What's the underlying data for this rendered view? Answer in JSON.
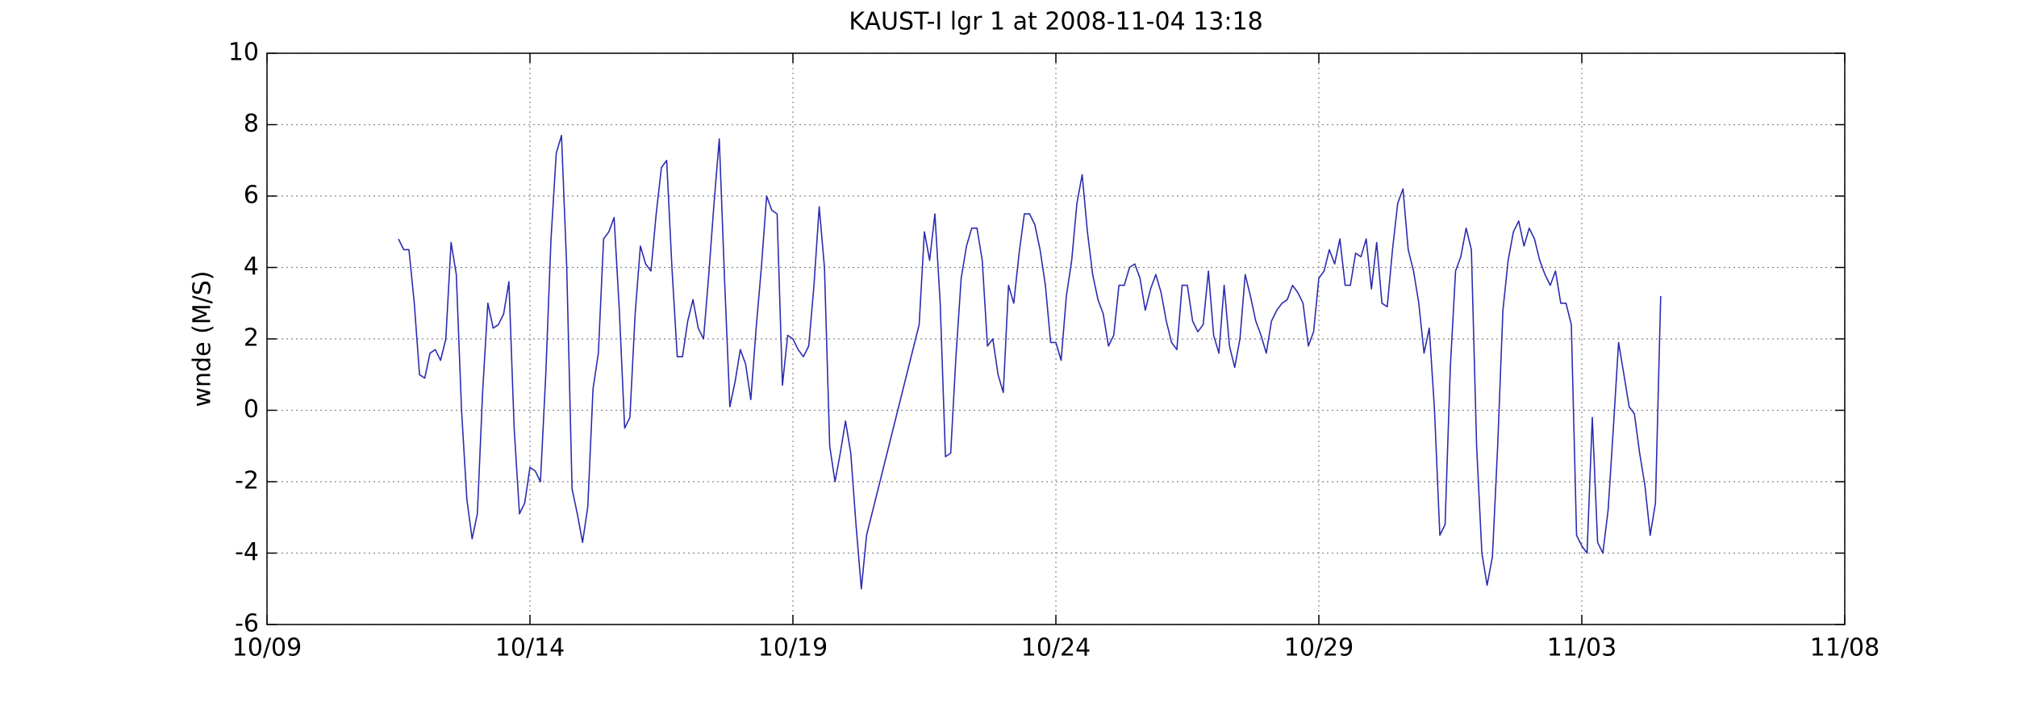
{
  "chart_data": {
    "type": "line",
    "title": "KAUST-I lgr 1 at 2008-11-04 13:18",
    "y_label": "wnde (M/S)",
    "x": [
      2.5,
      2.6,
      2.7,
      2.8,
      2.9,
      3.0,
      3.1,
      3.2,
      3.3,
      3.4,
      3.5,
      3.6,
      3.7,
      3.8,
      3.9,
      4.0,
      4.1,
      4.2,
      4.3,
      4.4,
      4.5,
      4.6,
      4.7,
      4.8,
      4.9,
      5.0,
      5.1,
      5.2,
      5.3,
      5.4,
      5.5,
      5.6,
      5.7,
      5.8,
      5.9,
      6.0,
      6.1,
      6.2,
      6.3,
      6.4,
      6.5,
      6.6,
      6.7,
      6.8,
      6.9,
      7.0,
      7.1,
      7.2,
      7.3,
      7.4,
      7.5,
      7.6,
      7.7,
      7.8,
      7.9,
      8.0,
      8.1,
      8.2,
      8.3,
      8.4,
      8.5,
      8.6,
      8.7,
      8.8,
      8.9,
      9.0,
      9.1,
      9.2,
      9.3,
      9.4,
      9.5,
      9.6,
      9.7,
      9.8,
      9.9,
      10.0,
      10.1,
      10.2,
      10.3,
      10.4,
      10.5,
      10.6,
      10.7,
      10.8,
      10.9,
      11.0,
      11.1,
      11.2,
      11.3,
      11.4,
      12.4,
      12.5,
      12.6,
      12.7,
      12.8,
      12.9,
      13.0,
      13.1,
      13.2,
      13.3,
      13.4,
      13.5,
      13.6,
      13.7,
      13.8,
      13.9,
      14.0,
      14.1,
      14.2,
      14.3,
      14.4,
      14.5,
      14.6,
      14.7,
      14.8,
      14.9,
      15.0,
      15.1,
      15.2,
      15.3,
      15.4,
      15.5,
      15.6,
      15.7,
      15.8,
      15.9,
      16.0,
      16.1,
      16.2,
      16.3,
      16.4,
      16.5,
      16.6,
      16.7,
      16.8,
      16.9,
      17.0,
      17.1,
      17.2,
      17.3,
      17.4,
      17.5,
      17.6,
      17.7,
      17.8,
      17.9,
      18.0,
      18.1,
      18.2,
      18.3,
      18.4,
      18.5,
      18.6,
      18.7,
      18.8,
      18.9,
      19.0,
      19.1,
      19.2,
      19.3,
      19.4,
      19.5,
      19.6,
      19.7,
      19.8,
      19.9,
      20.0,
      20.1,
      20.2,
      20.3,
      20.4,
      20.5,
      20.6,
      20.7,
      20.8,
      20.9,
      21.0,
      21.1,
      21.2,
      21.3,
      21.4,
      21.5,
      21.6,
      21.7,
      21.8,
      21.9,
      22.0,
      22.1,
      22.2,
      22.3,
      22.4,
      22.5,
      22.6,
      22.7,
      22.8,
      22.9,
      23.0,
      23.1,
      23.2,
      23.3,
      23.4,
      23.5,
      23.6,
      23.7,
      23.8,
      23.9,
      24.0,
      24.1,
      24.2,
      24.3,
      24.4,
      24.5,
      24.6,
      24.7,
      24.8,
      24.9,
      25.0,
      25.1,
      25.2,
      25.3,
      25.4,
      25.5,
      25.6,
      25.7,
      25.8,
      25.9,
      26.0,
      26.1,
      26.2,
      26.3,
      26.4,
      26.5
    ],
    "series": [
      {
        "name": "wnde",
        "color": "#2b2bb0",
        "values": [
          4.8,
          4.5,
          4.5,
          3.0,
          1.0,
          0.9,
          1.6,
          1.7,
          1.4,
          2.0,
          4.7,
          3.8,
          0.0,
          -2.5,
          -3.6,
          -2.9,
          0.5,
          3.0,
          2.3,
          2.4,
          2.7,
          3.6,
          -0.5,
          -2.9,
          -2.6,
          -1.6,
          -1.7,
          -2.0,
          1.0,
          4.8,
          7.2,
          7.7,
          4.0,
          -2.2,
          -2.9,
          -3.7,
          -2.7,
          0.6,
          1.6,
          4.8,
          5.0,
          5.4,
          2.8,
          -0.5,
          -0.2,
          2.7,
          4.6,
          4.1,
          3.9,
          5.5,
          6.8,
          7.0,
          4.0,
          1.5,
          1.5,
          2.5,
          3.1,
          2.3,
          2.0,
          3.8,
          5.8,
          7.6,
          3.7,
          0.1,
          0.8,
          1.7,
          1.3,
          0.3,
          2.3,
          4.0,
          6.0,
          5.6,
          5.5,
          0.7,
          2.1,
          2.0,
          1.7,
          1.5,
          1.8,
          3.5,
          5.7,
          4.0,
          -1.0,
          -2.0,
          -1.2,
          -0.3,
          -1.2,
          -3.2,
          -5.0,
          -3.5,
          2.4,
          5.0,
          4.2,
          5.5,
          3.0,
          -1.3,
          -1.2,
          1.5,
          3.7,
          4.6,
          5.1,
          5.1,
          4.2,
          1.8,
          2.0,
          1.0,
          0.5,
          3.5,
          3.0,
          4.4,
          5.5,
          5.5,
          5.2,
          4.5,
          3.5,
          1.9,
          1.9,
          1.4,
          3.2,
          4.2,
          5.8,
          6.6,
          5.0,
          3.8,
          3.1,
          2.7,
          1.8,
          2.1,
          3.5,
          3.5,
          4.0,
          4.1,
          3.7,
          2.8,
          3.4,
          3.8,
          3.3,
          2.5,
          1.9,
          1.7,
          3.5,
          3.5,
          2.5,
          2.2,
          2.4,
          3.9,
          2.1,
          1.6,
          3.5,
          1.8,
          1.2,
          2.0,
          3.8,
          3.2,
          2.5,
          2.1,
          1.6,
          2.5,
          2.8,
          3.0,
          3.1,
          3.5,
          3.3,
          3.0,
          1.8,
          2.2,
          3.7,
          3.9,
          4.5,
          4.1,
          4.8,
          3.5,
          3.5,
          4.4,
          4.3,
          4.8,
          3.4,
          4.7,
          3.0,
          2.9,
          4.5,
          5.8,
          6.2,
          4.5,
          3.9,
          3.0,
          1.6,
          2.3,
          0.0,
          -3.5,
          -3.2,
          1.2,
          3.9,
          4.3,
          5.1,
          4.5,
          -1.0,
          -4.0,
          -4.9,
          -4.1,
          -1.0,
          2.8,
          4.2,
          5.0,
          5.3,
          4.6,
          5.1,
          4.8,
          4.2,
          3.8,
          3.5,
          3.9,
          3.0,
          3.0,
          2.4,
          -3.5,
          -3.8,
          -4.0,
          -0.2,
          -3.7,
          -4.0,
          -2.8,
          -0.5,
          1.9,
          1.0,
          0.1,
          -0.1,
          -1.2,
          -2.1,
          -3.5,
          -2.6,
          3.2
        ]
      }
    ],
    "xlim": [
      0,
      30
    ],
    "xticks": [
      {
        "value": 0,
        "label": "10/09"
      },
      {
        "value": 5,
        "label": "10/14"
      },
      {
        "value": 10,
        "label": "10/19"
      },
      {
        "value": 15,
        "label": "10/24"
      },
      {
        "value": 20,
        "label": "10/29"
      },
      {
        "value": 25,
        "label": "11/03"
      },
      {
        "value": 30,
        "label": "11/08"
      }
    ],
    "ylim": [
      -6,
      10
    ],
    "yticks": [
      -6,
      -4,
      -2,
      0,
      2,
      4,
      6,
      8,
      10
    ],
    "grid": true
  }
}
